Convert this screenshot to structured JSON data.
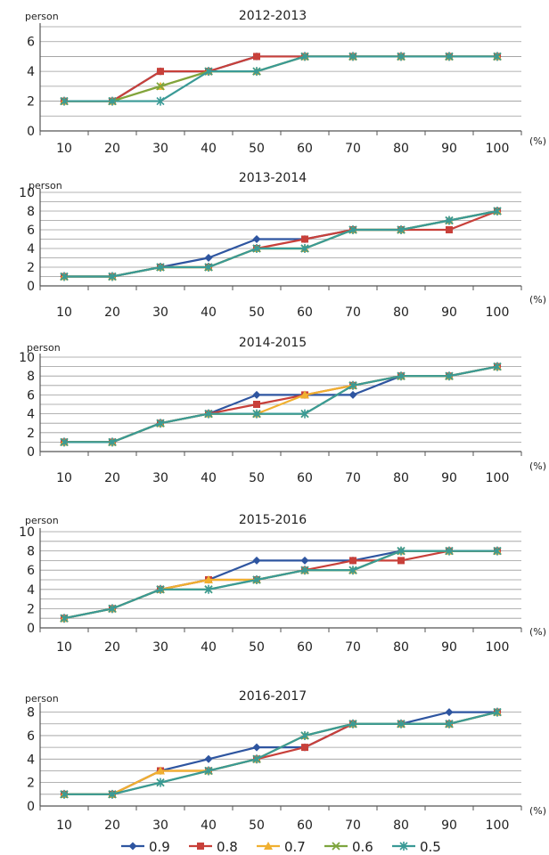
{
  "chart_data": [
    {
      "type": "line",
      "title": "2012-2013",
      "ylabel": "person",
      "xunit": "(%)",
      "categories": [
        "10",
        "20",
        "30",
        "40",
        "50",
        "60",
        "70",
        "80",
        "90",
        "100"
      ],
      "yticks": [
        "0",
        "2",
        "4",
        "6"
      ],
      "ylim": [
        0,
        7
      ],
      "grid": true,
      "series": [
        {
          "name": "0.9",
          "values": [
            2,
            2,
            4,
            4,
            5,
            5,
            5,
            5,
            5,
            5
          ]
        },
        {
          "name": "0.8",
          "values": [
            2,
            2,
            4,
            4,
            5,
            5,
            5,
            5,
            5,
            5
          ]
        },
        {
          "name": "0.7",
          "values": [
            2,
            2,
            3,
            4,
            4,
            5,
            5,
            5,
            5,
            5
          ]
        },
        {
          "name": "0.6",
          "values": [
            2,
            2,
            3,
            4,
            4,
            5,
            5,
            5,
            5,
            5
          ]
        },
        {
          "name": "0.5",
          "values": [
            2,
            2,
            2,
            4,
            4,
            5,
            5,
            5,
            5,
            5
          ]
        }
      ]
    },
    {
      "type": "line",
      "title": "2013-2014",
      "ylabel": "person",
      "xunit": "(%)",
      "categories": [
        "10",
        "20",
        "30",
        "40",
        "50",
        "60",
        "70",
        "80",
        "90",
        "100"
      ],
      "yticks": [
        "0",
        "2",
        "4",
        "6",
        "8",
        "10"
      ],
      "ylim": [
        0,
        10
      ],
      "grid": true,
      "series": [
        {
          "name": "0.9",
          "values": [
            1,
            1,
            2,
            3,
            5,
            5,
            6,
            6,
            7,
            8
          ]
        },
        {
          "name": "0.8",
          "values": [
            1,
            1,
            2,
            2,
            4,
            5,
            6,
            6,
            6,
            8
          ]
        },
        {
          "name": "0.7",
          "values": [
            1,
            1,
            2,
            2,
            4,
            4,
            6,
            6,
            7,
            8
          ]
        },
        {
          "name": "0.6",
          "values": [
            1,
            1,
            2,
            2,
            4,
            4,
            6,
            6,
            7,
            8
          ]
        },
        {
          "name": "0.5",
          "values": [
            1,
            1,
            2,
            2,
            4,
            4,
            6,
            6,
            7,
            8
          ]
        }
      ]
    },
    {
      "type": "line",
      "title": "2014-2015",
      "ylabel": "person",
      "xunit": "(%)",
      "categories": [
        "10",
        "20",
        "30",
        "40",
        "50",
        "60",
        "70",
        "80",
        "90",
        "100"
      ],
      "yticks": [
        "0",
        "2",
        "4",
        "6",
        "8",
        "10"
      ],
      "ylim": [
        0,
        10
      ],
      "grid": true,
      "series": [
        {
          "name": "0.9",
          "values": [
            1,
            1,
            3,
            4,
            6,
            6,
            6,
            8,
            8,
            9
          ]
        },
        {
          "name": "0.8",
          "values": [
            1,
            1,
            3,
            4,
            5,
            6,
            7,
            8,
            8,
            9
          ]
        },
        {
          "name": "0.7",
          "values": [
            1,
            1,
            3,
            4,
            4,
            6,
            7,
            8,
            8,
            9
          ]
        },
        {
          "name": "0.6",
          "values": [
            1,
            1,
            3,
            4,
            4,
            4,
            7,
            8,
            8,
            9
          ]
        },
        {
          "name": "0.5",
          "values": [
            1,
            1,
            3,
            4,
            4,
            4,
            7,
            8,
            8,
            9
          ]
        }
      ]
    },
    {
      "type": "line",
      "title": "2015-2016",
      "ylabel": "person",
      "xunit": "(%)",
      "categories": [
        "10",
        "20",
        "30",
        "40",
        "50",
        "60",
        "70",
        "80",
        "90",
        "100"
      ],
      "yticks": [
        "0",
        "2",
        "4",
        "6",
        "8",
        "10"
      ],
      "ylim": [
        0,
        10
      ],
      "grid": true,
      "series": [
        {
          "name": "0.9",
          "values": [
            1,
            2,
            4,
            5,
            7,
            7,
            7,
            8,
            8,
            8
          ]
        },
        {
          "name": "0.8",
          "values": [
            1,
            2,
            4,
            5,
            5,
            6,
            7,
            7,
            8,
            8
          ]
        },
        {
          "name": "0.7",
          "values": [
            1,
            2,
            4,
            5,
            5,
            6,
            6,
            8,
            8,
            8
          ]
        },
        {
          "name": "0.6",
          "values": [
            1,
            2,
            4,
            4,
            5,
            6,
            6,
            8,
            8,
            8
          ]
        },
        {
          "name": "0.5",
          "values": [
            1,
            2,
            4,
            4,
            5,
            6,
            6,
            8,
            8,
            8
          ]
        }
      ]
    },
    {
      "type": "line",
      "title": "2016-2017",
      "ylabel": "person",
      "xunit": "(%)",
      "categories": [
        "10",
        "20",
        "30",
        "40",
        "50",
        "60",
        "70",
        "80",
        "90",
        "100"
      ],
      "yticks": [
        "0",
        "2",
        "4",
        "6",
        "8"
      ],
      "ylim": [
        0,
        8.5
      ],
      "grid": true,
      "series": [
        {
          "name": "0.9",
          "values": [
            1,
            1,
            3,
            4,
            5,
            5,
            7,
            7,
            8,
            8
          ]
        },
        {
          "name": "0.8",
          "values": [
            1,
            1,
            3,
            3,
            4,
            5,
            7,
            7,
            7,
            8
          ]
        },
        {
          "name": "0.7",
          "values": [
            1,
            1,
            3,
            3,
            4,
            6,
            7,
            7,
            7,
            8
          ]
        },
        {
          "name": "0.6",
          "values": [
            1,
            1,
            2,
            3,
            4,
            6,
            7,
            7,
            7,
            8
          ]
        },
        {
          "name": "0.5",
          "values": [
            1,
            1,
            2,
            3,
            4,
            6,
            7,
            7,
            7,
            8
          ]
        }
      ]
    }
  ],
  "legend": {
    "entries": [
      {
        "name": "0.9",
        "color": "#2e55a0",
        "marker": "diamond"
      },
      {
        "name": "0.8",
        "color": "#c8403a",
        "marker": "square"
      },
      {
        "name": "0.7",
        "color": "#f0b030",
        "marker": "triangle"
      },
      {
        "name": "0.6",
        "color": "#7ea53e",
        "marker": "x"
      },
      {
        "name": "0.5",
        "color": "#3a9a96",
        "marker": "star"
      }
    ],
    "placement": "bottom"
  }
}
